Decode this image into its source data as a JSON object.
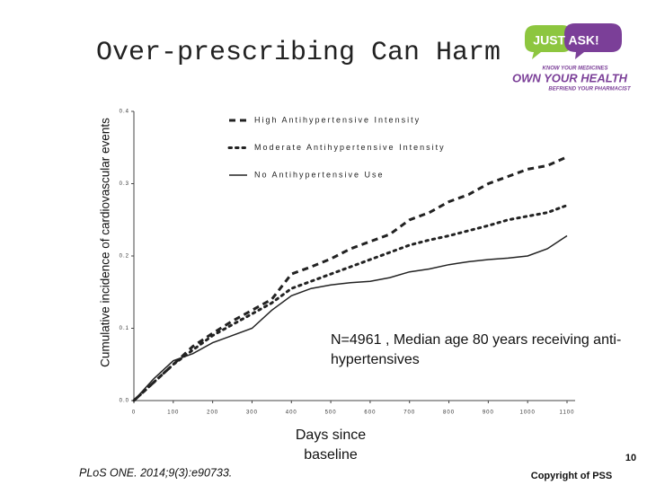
{
  "chart_data": {
    "type": "line",
    "title": "Over-prescribing Can Harm",
    "x_label": "Days since baseline",
    "y_label": "Cumulative incidence of cardiovascular events",
    "annotations": [
      "N=4961 , Median age 80 years receiving anti-hypertensives"
    ],
    "x": [
      0,
      50,
      100,
      150,
      200,
      250,
      300,
      350,
      400,
      450,
      500,
      550,
      600,
      650,
      700,
      750,
      800,
      850,
      900,
      950,
      1000,
      1050,
      1100
    ],
    "series": [
      {
        "name": "High Antihypertensive Intensity",
        "color": "#222222",
        "style": "dashed",
        "values": [
          0,
          0.025,
          0.05,
          0.075,
          0.093,
          0.11,
          0.125,
          0.14,
          0.175,
          0.185,
          0.196,
          0.21,
          0.22,
          0.23,
          0.25,
          0.26,
          0.275,
          0.285,
          0.3,
          0.31,
          0.32,
          0.325,
          0.337
        ]
      },
      {
        "name": "Moderate Antihypertensive Intensity",
        "color": "#222222",
        "style": "dotted",
        "values": [
          0,
          0.025,
          0.05,
          0.07,
          0.09,
          0.105,
          0.12,
          0.135,
          0.155,
          0.165,
          0.175,
          0.185,
          0.195,
          0.205,
          0.215,
          0.222,
          0.228,
          0.235,
          0.242,
          0.25,
          0.255,
          0.26,
          0.27
        ]
      },
      {
        "name": "No Antihypertensive Use",
        "color": "#222222",
        "style": "solid",
        "values": [
          0,
          0.03,
          0.055,
          0.065,
          0.08,
          0.09,
          0.1,
          0.125,
          0.145,
          0.155,
          0.16,
          0.163,
          0.165,
          0.17,
          0.178,
          0.182,
          0.188,
          0.192,
          0.195,
          0.197,
          0.2,
          0.21,
          0.228
        ]
      }
    ],
    "xlim": [
      0,
      1100
    ],
    "xticks": [
      0,
      100,
      200,
      300,
      400,
      500,
      600,
      700,
      800,
      900,
      1000,
      1100
    ],
    "ylim": [
      0,
      0.4
    ],
    "yticks": [
      {
        "value": 0,
        "label": "0.0"
      },
      0.1,
      0.2,
      0.3,
      0.4
    ],
    "legend": "upper left"
  },
  "logo": {
    "name": "JUST ASK!",
    "line1": "KNOW YOUR MEDICINES",
    "line2": "OWN YOUR HEALTH",
    "line3": "BEFRIEND YOUR PHARMACIST"
  },
  "footer": {
    "citation": "PLoS ONE. 2014;9(3):e90733.",
    "page": "10",
    "copyright": "Copyright of PSS"
  }
}
